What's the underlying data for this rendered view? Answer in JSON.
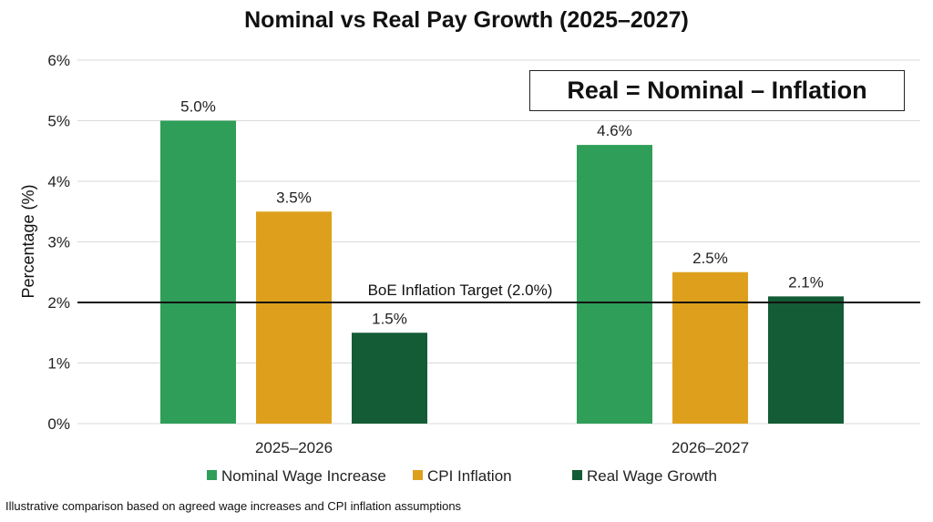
{
  "chart_data": {
    "type": "bar",
    "title": "Nominal vs Real Pay Growth (2025–2027)",
    "ylabel": "Percentage (%)",
    "xlabel": "",
    "ylim": [
      0,
      6
    ],
    "yticks": [
      "0%",
      "1%",
      "2%",
      "3%",
      "4%",
      "5%",
      "6%"
    ],
    "grid": true,
    "categories": [
      "2025–2026",
      "2026–2027"
    ],
    "series": [
      {
        "name": "Nominal Wage Increase",
        "values": [
          5.0,
          4.6
        ],
        "labels": [
          "5.0%",
          "4.6%"
        ],
        "color": "#2e9e58"
      },
      {
        "name": "CPI Inflation",
        "values": [
          3.5,
          2.5
        ],
        "labels": [
          "3.5%",
          "2.5%"
        ],
        "color": "#dea01c"
      },
      {
        "name": "Real Wage Growth",
        "values": [
          1.5,
          2.1
        ],
        "labels": [
          "1.5%",
          "2.1%"
        ],
        "color": "#135c35"
      }
    ],
    "reference_line": {
      "value": 2.0,
      "label": "BoE Inflation Target (2.0%)"
    },
    "annotation": "Real = Nominal – Inflation",
    "legend_position": "bottom"
  },
  "footnote": "Illustrative comparison based on agreed wage increases and CPI inflation assumptions"
}
